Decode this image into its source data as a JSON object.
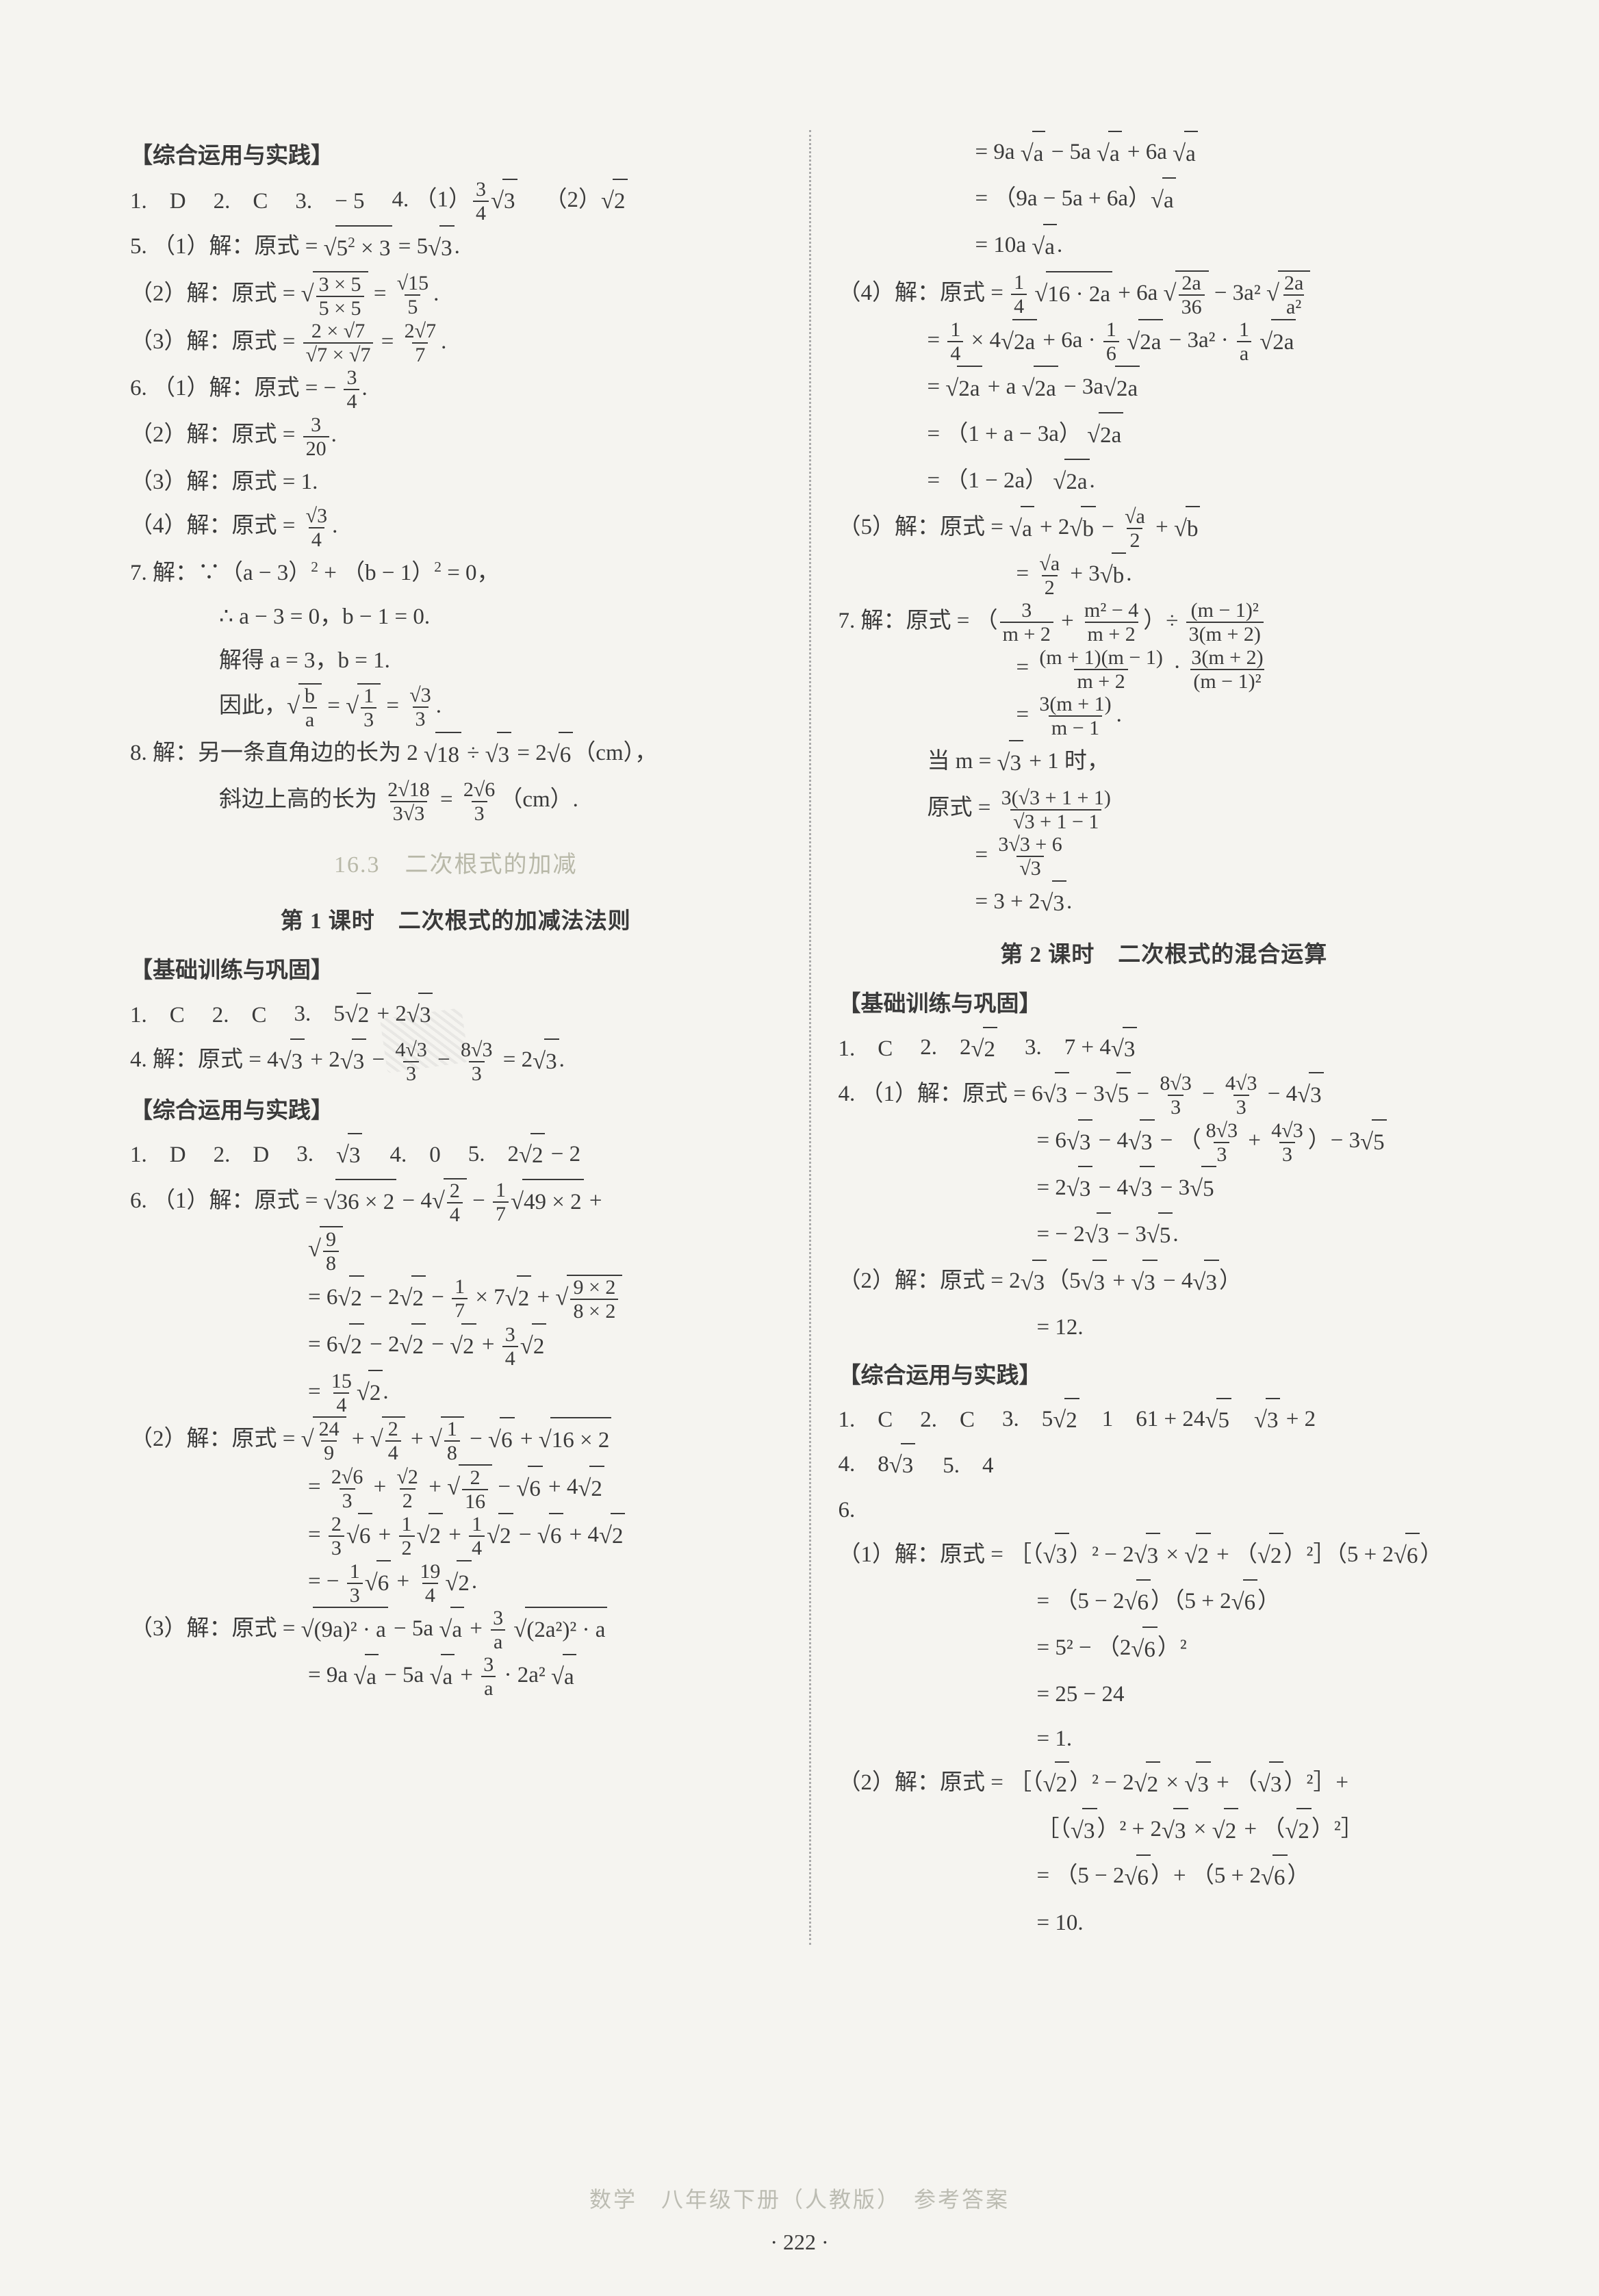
{
  "footer_text": "数学　八年级下册（人教版）　参考答案",
  "page_number": "· 222 ·",
  "left": {
    "h1": "【综合运用与实践】",
    "q1": {
      "n": "1.",
      "a": "D"
    },
    "q2": {
      "n": "2.",
      "a": "C"
    },
    "q3": {
      "n": "3.",
      "a": "− 5"
    },
    "q4_label": "4. （1）",
    "q4_1_pre": "",
    "q4_1_frac_num": "3",
    "q4_1_frac_den": "4",
    "q4_1_sqrt": "3",
    "q4_2_label": "（2）",
    "q4_2_sqrt": "2",
    "q5": "5. （1）解：原式 = ",
    "q5_sqrt1": "5",
    "q5_exp": "2",
    "q5_mid": " × 3",
    "q5_eq": " = 5",
    "q5_sqrt2": "3",
    "q5_end": ".",
    "q5_2": "（2）解：原式 = ",
    "q5_2_num": "3 × 5",
    "q5_2_den": "5 × 5",
    "q5_2_eq": " = ",
    "q5_2_num2": "√15",
    "q5_2_den2": "5",
    "q5_2_end": ".",
    "q5_3": "（3）解：原式 = ",
    "q5_3_num": "2 × √7",
    "q5_3_den": "√7 × √7",
    "q5_3_eq": " = ",
    "q5_3_num2": "2√7",
    "q5_3_den2": "7",
    "q5_3_end": ".",
    "q6_1": "6. （1）解：原式 = − ",
    "q6_1_num": "3",
    "q6_1_den": "4",
    "q6_1_end": ".",
    "q6_2": "（2）解：原式 = ",
    "q6_2_num": "3",
    "q6_2_den": "20",
    "q6_2_end": ".",
    "q6_3": "（3）解：原式 = 1.",
    "q6_4": "（4）解：原式 = ",
    "q6_4_num": "√3",
    "q6_4_den": "4",
    "q6_4_end": ".",
    "q7_1": "7. 解：∵（a − 3）",
    "q7_1_sup": "2",
    "q7_1_mid": " + （b − 1）",
    "q7_1_sup2": "2",
    "q7_1_end": " = 0，",
    "q7_2": "∴ a − 3 = 0，b − 1 = 0.",
    "q7_3": "解得 a = 3，b = 1.",
    "q7_4": "因此，",
    "q7_4_n1": "b",
    "q7_4_d1": "a",
    "q7_4_mid": " = ",
    "q7_4_n2": "1",
    "q7_4_d2": "3",
    "q7_4_eq": " = ",
    "q7_4_n3": "√3",
    "q7_4_d3": "3",
    "q7_4_end": ".",
    "q8_1": "8. 解：另一条直角边的长为 2 ",
    "q8_1_sqrt": "18",
    "q8_1_mid": " ÷ ",
    "q8_1_sqrt2": "3",
    "q8_1_eq": " = 2",
    "q8_1_sqrt3": "6",
    "q8_1_unit": "（cm），",
    "q8_2": "斜边上高的长为 ",
    "q8_2_n": "2√18",
    "q8_2_d": "3√3",
    "q8_2_eq": " = ",
    "q8_2_n2": "2√6",
    "q8_2_d2": "3",
    "q8_2_unit": "（cm）.",
    "sec_title": "16.3　二次根式的加减",
    "lesson1": "第 1 课时　二次根式的加减法法则",
    "h2": "【基础训练与巩固】",
    "b_q1": {
      "n": "1.",
      "a": "C"
    },
    "b_q2": {
      "n": "2.",
      "a": "C"
    },
    "b_q3": "3.　5",
    "b_q3_sqrt1": "2",
    "b_q3_mid": " + 2",
    "b_q3_sqrt2": "3",
    "b_q4": "4. 解：原式 = 4",
    "b_q4_sqrt1": "3",
    "b_q4_m1": " + 2",
    "b_q4_sqrt2": "3",
    "b_q4_m2": " − ",
    "b_q4_n1": "4√3",
    "b_q4_d1": "3",
    "b_q4_m3": " − ",
    "b_q4_n2": "8√3",
    "b_q4_d2": "3",
    "b_q4_eq": " = 2",
    "b_q4_sqrt3": "3",
    "b_q4_end": ".",
    "h3": "【综合运用与实践】",
    "c_q1": {
      "n": "1.",
      "a": "D"
    },
    "c_q2": {
      "n": "2.",
      "a": "D"
    },
    "c_q3": "3.　",
    "c_q3_sqrt": "3",
    "c_q4": {
      "n": "4.",
      "a": "0"
    },
    "c_q5": "5.　2",
    "c_q5_sqrt": "2",
    "c_q5_end": " − 2",
    "c6_1": "6. （1）解：原式 = ",
    "c6_1_sqrt1": "36 × 2",
    "c6_1_m1": " − 4",
    "c6_1_n1": "2",
    "c6_1_d1": "4",
    "c6_1_m2": " − ",
    "c6_1_n2": "1",
    "c6_1_d2": "7",
    "c6_1_sqrt2": "49 × 2",
    "c6_1_m3": " +",
    "c6_1b_n": "9",
    "c6_1b_d": "8",
    "c6_2": "= 6",
    "c6_2_sqrt1": "2",
    "c6_2_m1": " − 2",
    "c6_2_sqrt2": "2",
    "c6_2_m2": " − ",
    "c6_2_n": "1",
    "c6_2_d": "7",
    "c6_2_m3": " × 7",
    "c6_2_sqrt3": "2",
    "c6_2_m4": " + ",
    "c6_2_n2": "9 × 2",
    "c6_2_d2": "8 × 2",
    "c6_3": "= 6",
    "c6_3_sqrt1": "2",
    "c6_3_m1": " − 2",
    "c6_3_sqrt2": "2",
    "c6_3_m2": " − ",
    "c6_3_sqrt3": "2",
    "c6_3_m3": " + ",
    "c6_3_n": "3",
    "c6_3_d": "4",
    "c6_3_sqrt4": "2",
    "c6_4": "= ",
    "c6_4_n": "15",
    "c6_4_d": "4",
    "c6_4_sqrt": "2",
    "c6_4_end": ".",
    "c62_1": "（2）解：原式 = ",
    "c62_1_n1": "24",
    "c62_1_d1": "9",
    "c62_1_m1": " + ",
    "c62_1_n2": "2",
    "c62_1_d2": "4",
    "c62_1_m2": " + ",
    "c62_1_n3": "1",
    "c62_1_d3": "8",
    "c62_1_m3": " − ",
    "c62_1_sqrt": "6",
    "c62_1_m4": " + ",
    "c62_1_sqrt2": "16 × 2",
    "c62_2": "= ",
    "c62_2_n1": "2√6",
    "c62_2_d1": "3",
    "c62_2_m1": " + ",
    "c62_2_n2": "√2",
    "c62_2_d2": "2",
    "c62_2_m2": " + ",
    "c62_2_n3": "2",
    "c62_2_d3": "16",
    "c62_2_m3": " − ",
    "c62_2_sqrt": "6",
    "c62_2_m4": " + 4",
    "c62_2_sqrt2": "2",
    "c62_3": "= ",
    "c62_3_n1": "2",
    "c62_3_d1": "3",
    "c62_3_sqrt1": "6",
    "c62_3_m1": " + ",
    "c62_3_n2": "1",
    "c62_3_d2": "2",
    "c62_3_sqrt2": "2",
    "c62_3_m2": " + ",
    "c62_3_n3": "1",
    "c62_3_d3": "4",
    "c62_3_sqrt3": "2",
    "c62_3_m3": " − ",
    "c62_3_sqrt4": "6",
    "c62_3_m4": " + 4",
    "c62_3_sqrt5": "2",
    "c62_4": "= − ",
    "c62_4_n1": "1",
    "c62_4_d1": "3",
    "c62_4_sqrt1": "6",
    "c62_4_m1": " + ",
    "c62_4_n2": "19",
    "c62_4_d2": "4",
    "c62_4_sqrt2": "2",
    "c62_4_end": ".",
    "c63_1": "（3）解：原式 = ",
    "c63_1_sqrt1": "(9a)² · a",
    "c63_1_m1": " − 5a ",
    "c63_1_sqrt2": "a",
    "c63_1_m2": " + ",
    "c63_1_n": "3",
    "c63_1_d": "a",
    "c63_1_m3": " ",
    "c63_1_sqrt3": "(2a²)² · a",
    "c63_2": "= 9a ",
    "c63_2_sqrt1": "a",
    "c63_2_m1": " − 5a ",
    "c63_2_sqrt2": "a",
    "c63_2_m2": " + ",
    "c63_2_n": "3",
    "c63_2_d": "a",
    "c63_2_m3": " · 2a² ",
    "c63_2_sqrt3": "a"
  },
  "right": {
    "r1": "= 9a ",
    "r1_sqrt1": "a",
    "r1_m1": " − 5a ",
    "r1_sqrt2": "a",
    "r1_m2": " + 6a ",
    "r1_sqrt3": "a",
    "r2": "= （9a − 5a + 6a）",
    "r2_sqrt": "a",
    "r3": "= 10a ",
    "r3_sqrt": "a",
    "r3_end": ".",
    "r4_1": "（4）解：原式 = ",
    "r4_1_n1": "1",
    "r4_1_d1": "4",
    "r4_1_m1": " ",
    "r4_1_sqrt1": "16 · 2a",
    "r4_1_m2": " + 6a ",
    "r4_1_n2": "2a",
    "r4_1_d2": "36",
    "r4_1_m3": " − 3a² ",
    "r4_1_n3": "2a",
    "r4_1_d3": "a²",
    "r4_2": "= ",
    "r4_2_n1": "1",
    "r4_2_d1": "4",
    "r4_2_m1": " × 4",
    "r4_2_sqrt1": "2a",
    "r4_2_m2": " + 6a · ",
    "r4_2_n2": "1",
    "r4_2_d2": "6",
    "r4_2_m3": " ",
    "r4_2_sqrt2": "2a",
    "r4_2_m4": " − 3a² · ",
    "r4_2_n3": "1",
    "r4_2_d3": "a",
    "r4_2_m5": " ",
    "r4_2_sqrt3": "2a",
    "r4_3": "= ",
    "r4_3_sqrt1": "2a",
    "r4_3_m1": " + a ",
    "r4_3_sqrt2": "2a",
    "r4_3_m2": " − 3a",
    "r4_3_sqrt3": "2a",
    "r4_4": "= （1 + a − 3a） ",
    "r4_4_sqrt": "2a",
    "r4_5": "= （1 − 2a） ",
    "r4_5_sqrt": "2a",
    "r4_5_end": ".",
    "r5_1": "（5）解：原式 = ",
    "r5_1_sqrt1": "a",
    "r5_1_m1": " + 2",
    "r5_1_sqrt2": "b",
    "r5_1_m2": " − ",
    "r5_1_n": "√a",
    "r5_1_d": "2",
    "r5_1_m3": " + ",
    "r5_1_sqrt3": "b",
    "r5_2": "= ",
    "r5_2_n": "√a",
    "r5_2_d": "2",
    "r5_2_m": " + 3",
    "r5_2_sqrt": "b",
    "r5_2_end": ".",
    "r7_1": "7. 解：原式 = （",
    "r7_1_n1": "3",
    "r7_1_d1": "m + 2",
    "r7_1_m1": " + ",
    "r7_1_n2": "m² − 4",
    "r7_1_d2": "m + 2",
    "r7_1_m2": "）÷ ",
    "r7_1_n3": "(m − 1)²",
    "r7_1_d3": "3(m + 2)",
    "r7_2": "= ",
    "r7_2_n1": "(m + 1)(m − 1)",
    "r7_2_d1": "m + 2",
    "r7_2_m": " · ",
    "r7_2_n2": "3(m + 2)",
    "r7_2_d2": "(m − 1)²",
    "r7_3": "= ",
    "r7_3_n": "3(m + 1)",
    "r7_3_d": "m − 1",
    "r7_3_end": ".",
    "r7_4": "当 m = ",
    "r7_4_sqrt": "3",
    "r7_4_end": " + 1 时，",
    "r7_5": "原式 = ",
    "r7_5_n": "3(√3 + 1 + 1)",
    "r7_5_d": "√3 + 1 − 1",
    "r7_6": "= ",
    "r7_6_n": "3√3 + 6",
    "r7_6_d": "√3",
    "r7_7": "= 3 + 2",
    "r7_7_sqrt": "3",
    "r7_7_end": ".",
    "lesson2": "第 2 课时　二次根式的混合运算",
    "h4": "【基础训练与巩固】",
    "d_q1": {
      "n": "1.",
      "a": "C"
    },
    "d_q2": "2.　2",
    "d_q2_sqrt": "2",
    "d_q3": "3.　7 + 4",
    "d_q3_sqrt": "3",
    "d4_1": "4. （1）解：原式 = 6",
    "d4_1_sqrt1": "3",
    "d4_1_m1": " − 3",
    "d4_1_sqrt2": "5",
    "d4_1_m2": " − ",
    "d4_1_n1": "8√3",
    "d4_1_d1": "3",
    "d4_1_m3": " − ",
    "d4_1_n2": "4√3",
    "d4_1_d2": "3",
    "d4_1_m4": " − 4",
    "d4_1_sqrt3": "3",
    "d4_2": "= 6",
    "d4_2_sqrt1": "3",
    "d4_2_m1": " − 4",
    "d4_2_sqrt2": "3",
    "d4_2_m2": " − （",
    "d4_2_n1": "8√3",
    "d4_2_d1": "3",
    "d4_2_m3": " + ",
    "d4_2_n2": "4√3",
    "d4_2_d2": "3",
    "d4_2_m4": "）− 3",
    "d4_2_sqrt3": "5",
    "d4_3": "= 2",
    "d4_3_sqrt1": "3",
    "d4_3_m1": " − 4",
    "d4_3_sqrt2": "3",
    "d4_3_m2": " − 3",
    "d4_3_sqrt3": "5",
    "d4_4": "= − 2",
    "d4_4_sqrt1": "3",
    "d4_4_m1": " − 3",
    "d4_4_sqrt2": "5",
    "d4_4_end": ".",
    "d42_1": "（2）解：原式 = 2",
    "d42_1_sqrt1": "3",
    "d42_1_m1": "（5",
    "d42_1_sqrt2": "3",
    "d42_1_m2": " + ",
    "d42_1_sqrt3": "3",
    "d42_1_m3": " − 4",
    "d42_1_sqrt4": "3",
    "d42_1_m4": "）",
    "d42_2": "= 12.",
    "h5": "【综合运用与实践】",
    "e_q1": {
      "n": "1.",
      "a": "C"
    },
    "e_q2": {
      "n": "2.",
      "a": "C"
    },
    "e_q3": "3.　5",
    "e_q3_sqrt": "2",
    "e_q3_m1": "　1　61 + 24",
    "e_q3_sqrt2": "5",
    "e_q3_m2": "　",
    "e_q3_sqrt3": "3",
    "e_q3_m3": " + 2",
    "e_q4": "4.　8",
    "e_q4_sqrt": "3",
    "e_q5": "5.　4",
    "e_q6": "6.",
    "e61_1": "（1）解：原式 = ［（",
    "e61_1_sqrt1": "3",
    "e61_1_m1": "）² − 2",
    "e61_1_sqrt2": "3",
    "e61_1_m2": " × ",
    "e61_1_sqrt3": "2",
    "e61_1_m3": " + （",
    "e61_1_sqrt4": "2",
    "e61_1_m4": "）²］（5 + 2",
    "e61_1_sqrt5": "6",
    "e61_1_m5": "）",
    "e61_2": "= （5 − 2",
    "e61_2_sqrt1": "6",
    "e61_2_m1": "）（5 + 2",
    "e61_2_sqrt2": "6",
    "e61_2_m2": "）",
    "e61_3": "= 5² − （2",
    "e61_3_sqrt": "6",
    "e61_3_m": "）²",
    "e61_4": "= 25 − 24",
    "e61_5": "= 1.",
    "e62_1": "（2）解：原式 = ［（",
    "e62_1_sqrt1": "2",
    "e62_1_m1": "）² − 2",
    "e62_1_sqrt2": "2",
    "e62_1_m2": " × ",
    "e62_1_sqrt3": "3",
    "e62_1_m3": " + （",
    "e62_1_sqrt4": "3",
    "e62_1_m4": "）²］+",
    "e62_2": "［（",
    "e62_2_sqrt1": "3",
    "e62_2_m1": "）² + 2",
    "e62_2_sqrt2": "3",
    "e62_2_m2": " × ",
    "e62_2_sqrt3": "2",
    "e62_2_m3": " + （",
    "e62_2_sqrt4": "2",
    "e62_2_m4": "）²］",
    "e62_3": "= （5 − 2",
    "e62_3_sqrt1": "6",
    "e62_3_m1": "）+ （5 + 2",
    "e62_3_sqrt2": "6",
    "e62_3_m2": "）",
    "e62_4": "= 10."
  }
}
